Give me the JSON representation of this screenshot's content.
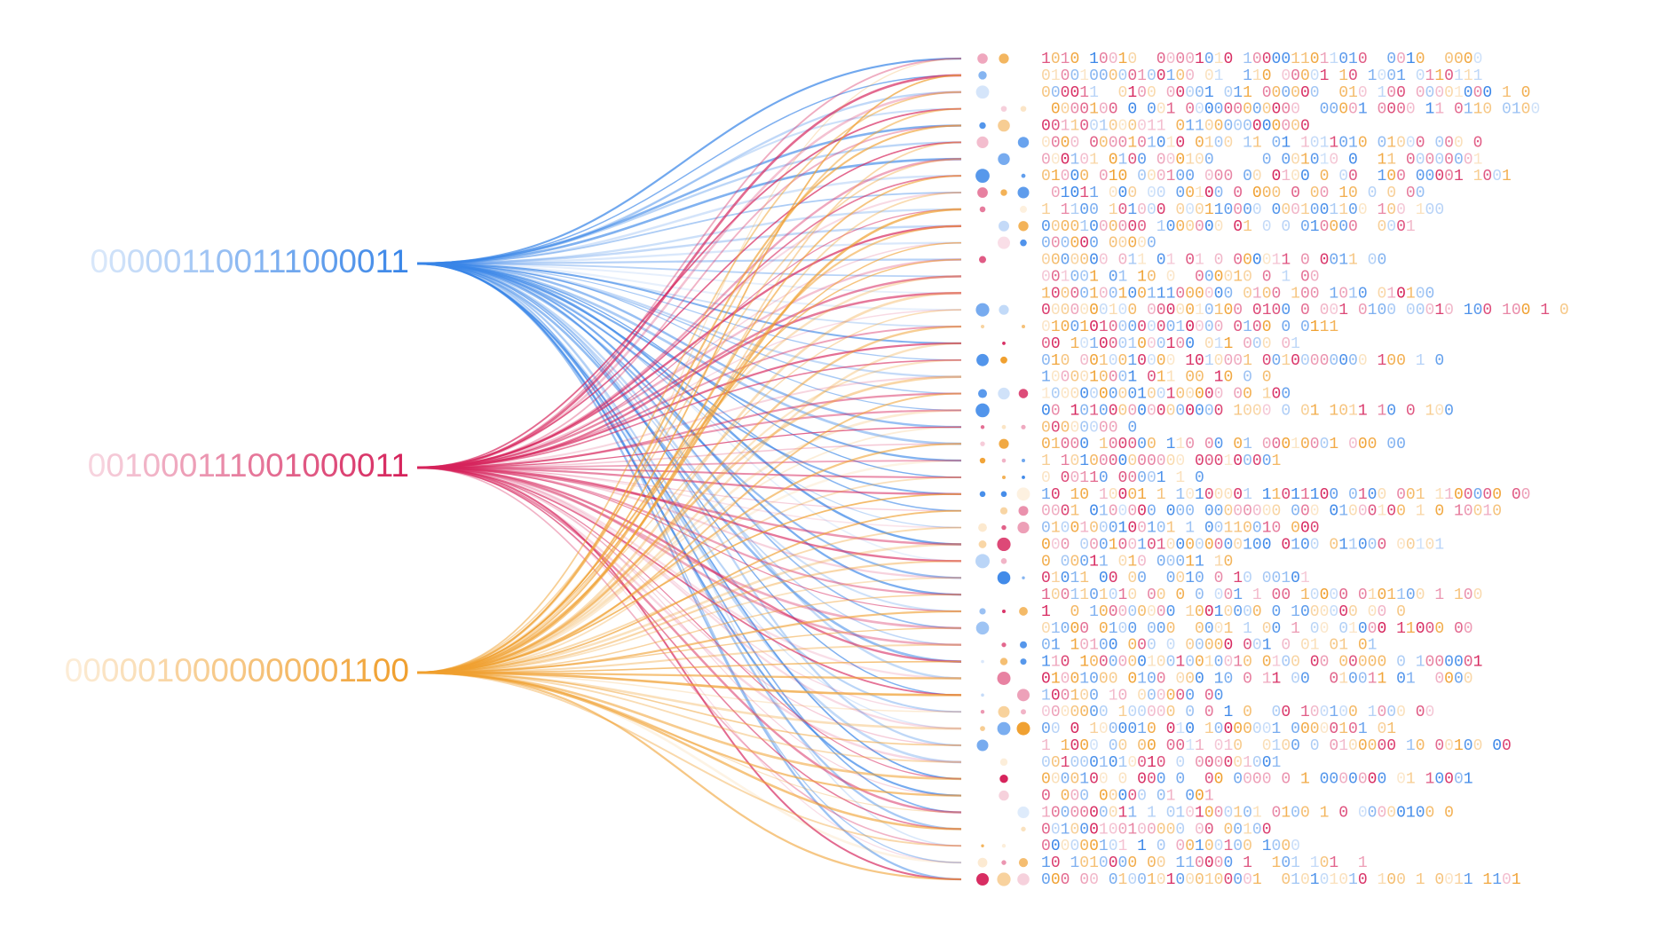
{
  "left_labels": [
    "000001100111000011",
    "001000111001000011",
    "0000010000000001100"
  ],
  "rows": [
    "1010 10010  00001010 1000011011010  0010  0000",
    "0100100000100100 01  110 00001 10 1001 0110111",
    "000011  0100 00001 011 000000  010 100 00001000 1 0",
    " 0000100 0 001 000000000000  00001 0000 11 0110 0100",
    "0011001000011 01100000000000",
    "0000 0000101010 0100 11 01 1011010 01000 000 0",
    "000101 0100 000100     0 001010 0  11 00000001",
    "01000 010 000100 000 00 0100 0 00  100 00001 1001",
    " 01011 000 00 00100 0 000 0 00 10 0 0 00",
    "1 1100 101000 000110000 0001001100 100 100",
    "00001000000 1000000 01 0 0 010000  0001",
    "000000 00000",
    "0000000 011 01 01 0 000011 0 0011 00",
    "001001 01 10 0  000010 0 1 00",
    "10000100100111000000 0100 100 1010 010100",
    "0000000100 0000010100 0100 0 001 0100 00010 100 100 1 0",
    "0100101000000010000 0100 0 0111",
    "00 1010001000100 011 000 01",
    "010 0010010000 1010001 00100000000 100 1 0",
    "1000010001 011 00 10 0 0",
    "1000000000100100000 00 100",
    "00 1010000000000000 1000 0 01 1011 10 0 100",
    "00000000 0",
    "01000 100000 110 00 01 00010001 000 00",
    "1 1010000000000 000100001",
    "0 00110 00001 1 0",
    "10 10 10001 1 10100001 11011100 0100 001 1100000 00",
    "0001 0100000 000 00000000 000 01000100 1 0 10010",
    "01001000100101 1 00110010 000",
    "000 00010010100000000100 0100 011000 00101",
    "0 00011 010 00011 10",
    "01011 00 00  0010 0 10 00101",
    "1001101010 00 0 0 001 1 00 10000 0101100 1 100",
    "1  0 100000000 10010000 0 1000000 00 0",
    "01000 0100 000  0001 1 00 1 00 01000 11000 00",
    "01 10100 000 0 00000 001 0 01 01 01",
    "110 100000010010010010 0100 00 00000 0 1000001",
    "01001000 0100 000 10 0 11 00  010011 01  0000",
    "100100 10 000000 00",
    "0000000 100000 0 0 1 0  00 100100 1000 00",
    "00 0 1000010 010 10000001 00000101 01",
    "1 1000 00 00 0011 010  0100 0 0100000 10 00100 00",
    "0010001010010 0 000001001",
    "0000100 0 000 0  00 0000 0 1 0000000 01 10001",
    "0 000 00000 01 001",
    "1000000011 1 0101000101 0100 1 0 00000100 0",
    "001000100100000 00 00100",
    "000000101 1 0 00100100 1000",
    "10 1010000 00 110000 1  101 101  1",
    "000 00 0100101000100001  010101010 100 1 0011 1101"
  ]
}
